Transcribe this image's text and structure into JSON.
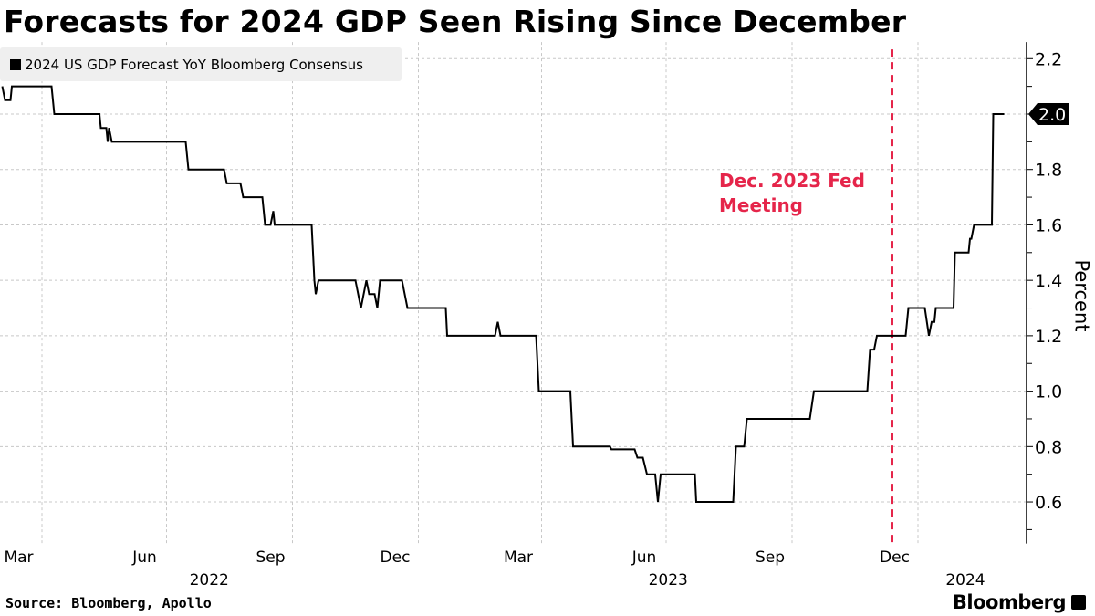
{
  "title": "Forecasts for 2024 GDP Seen Rising Since December",
  "source": "Source: Bloomberg, Apollo",
  "logo": "Bloomberg",
  "chart_data": {
    "type": "line",
    "title": "Forecasts for 2024 GDP Seen Rising Since December",
    "ylabel": "Percent",
    "xlabel": "",
    "ylim": [
      0.45,
      2.26
    ],
    "yticks": [
      "0.6",
      "0.8",
      "1.0",
      "1.2",
      "1.4",
      "1.6",
      "1.8",
      "2.0",
      "2.2"
    ],
    "y_minor_ticks": [
      0.5,
      0.7,
      0.9,
      1.1,
      1.3,
      1.5,
      1.7,
      1.9,
      2.1
    ],
    "xticks": [
      {
        "label": "Mar",
        "date": "2022-03-15"
      },
      {
        "label": "Jun",
        "date": "2022-06-15"
      },
      {
        "label": "Sep",
        "date": "2022-09-15"
      },
      {
        "label": "Dec",
        "date": "2022-12-15"
      },
      {
        "label": "Mar",
        "date": "2023-03-15"
      },
      {
        "label": "Jun",
        "date": "2023-06-15"
      },
      {
        "label": "Sep",
        "date": "2023-09-15"
      },
      {
        "label": "Dec",
        "date": "2023-12-15"
      }
    ],
    "years": [
      "2022",
      "2023",
      "2024"
    ],
    "grid": true,
    "legend": "top-left",
    "last_value_label": "2.0",
    "annotation": {
      "lines": [
        "Dec. 2023 Fed",
        "Meeting"
      ],
      "date": "2023-12-13",
      "color": "#e5254a"
    },
    "series": [
      {
        "name": "2024 US GDP Forecast YoY Bloomberg Consensus",
        "color": "#000000",
        "points": [
          [
            "2022-03-03",
            2.1
          ],
          [
            "2022-03-05",
            2.05
          ],
          [
            "2022-03-09",
            2.05
          ],
          [
            "2022-03-10",
            2.1
          ],
          [
            "2022-04-08",
            2.1
          ],
          [
            "2022-04-10",
            2.0
          ],
          [
            "2022-05-13",
            2.0
          ],
          [
            "2022-05-14",
            1.95
          ],
          [
            "2022-05-18",
            1.95
          ],
          [
            "2022-05-19",
            1.9
          ],
          [
            "2022-05-20",
            1.95
          ],
          [
            "2022-05-22",
            1.9
          ],
          [
            "2022-07-15",
            1.9
          ],
          [
            "2022-07-17",
            1.8
          ],
          [
            "2022-08-12",
            1.8
          ],
          [
            "2022-08-14",
            1.75
          ],
          [
            "2022-08-24",
            1.75
          ],
          [
            "2022-08-26",
            1.7
          ],
          [
            "2022-09-09",
            1.7
          ],
          [
            "2022-09-11",
            1.6
          ],
          [
            "2022-09-15",
            1.6
          ],
          [
            "2022-09-17",
            1.65
          ],
          [
            "2022-09-18",
            1.6
          ],
          [
            "2022-10-15",
            1.6
          ],
          [
            "2022-10-17",
            1.4
          ],
          [
            "2022-10-18",
            1.35
          ],
          [
            "2022-10-20",
            1.4
          ],
          [
            "2022-11-16",
            1.4
          ],
          [
            "2022-11-18",
            1.35
          ],
          [
            "2022-11-20",
            1.3
          ],
          [
            "2022-11-22",
            1.35
          ],
          [
            "2022-11-24",
            1.4
          ],
          [
            "2022-11-26",
            1.35
          ],
          [
            "2022-11-30",
            1.35
          ],
          [
            "2022-12-02",
            1.3
          ],
          [
            "2022-12-04",
            1.4
          ],
          [
            "2022-12-20",
            1.4
          ],
          [
            "2022-12-22",
            1.35
          ],
          [
            "2022-12-24",
            1.3
          ],
          [
            "2023-01-21",
            1.3
          ],
          [
            "2023-01-22",
            1.2
          ],
          [
            "2023-02-26",
            1.2
          ],
          [
            "2023-02-28",
            1.25
          ],
          [
            "2023-03-02",
            1.2
          ],
          [
            "2023-03-28",
            1.2
          ],
          [
            "2023-03-30",
            1.0
          ],
          [
            "2023-04-22",
            1.0
          ],
          [
            "2023-04-24",
            0.8
          ],
          [
            "2023-05-21",
            0.8
          ],
          [
            "2023-05-22",
            0.79
          ],
          [
            "2023-06-08",
            0.79
          ],
          [
            "2023-06-10",
            0.76
          ],
          [
            "2023-06-14",
            0.76
          ],
          [
            "2023-06-17",
            0.7
          ],
          [
            "2023-06-23",
            0.7
          ],
          [
            "2023-06-25",
            0.6
          ],
          [
            "2023-06-27",
            0.7
          ],
          [
            "2023-07-22",
            0.7
          ],
          [
            "2023-07-23",
            0.6
          ],
          [
            "2023-08-19",
            0.6
          ],
          [
            "2023-08-21",
            0.8
          ],
          [
            "2023-08-27",
            0.8
          ],
          [
            "2023-08-29",
            0.9
          ],
          [
            "2023-10-14",
            0.9
          ],
          [
            "2023-10-17",
            1.0
          ],
          [
            "2023-11-25",
            1.0
          ],
          [
            "2023-11-27",
            1.15
          ],
          [
            "2023-11-30",
            1.15
          ],
          [
            "2023-12-02",
            1.2
          ],
          [
            "2023-12-23",
            1.2
          ],
          [
            "2023-12-25",
            1.3
          ],
          [
            "2024-01-06",
            1.3
          ],
          [
            "2024-01-09",
            1.2
          ],
          [
            "2024-01-11",
            1.25
          ],
          [
            "2024-01-13",
            1.25
          ],
          [
            "2024-01-14",
            1.3
          ],
          [
            "2024-01-27",
            1.3
          ],
          [
            "2024-01-28",
            1.5
          ],
          [
            "2024-02-07",
            1.5
          ],
          [
            "2024-02-08",
            1.55
          ],
          [
            "2024-02-09",
            1.55
          ],
          [
            "2024-02-11",
            1.6
          ],
          [
            "2024-02-24",
            1.6
          ],
          [
            "2024-02-25",
            2.0
          ],
          [
            "2024-03-04",
            2.0
          ]
        ]
      }
    ]
  }
}
